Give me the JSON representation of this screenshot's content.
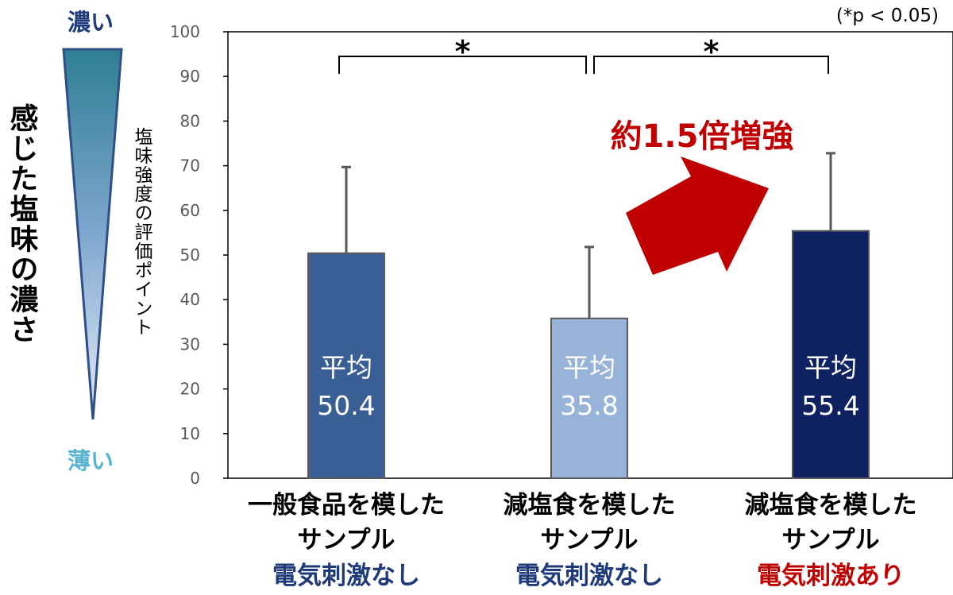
{
  "chart_data": {
    "type": "bar",
    "categories": [
      {
        "line1": "一般食品を模した",
        "line2": "サンプル",
        "line3": "電気刺激なし",
        "line3_color": "#1f3a7a"
      },
      {
        "line1": "減塩食を模した",
        "line2": "サンプル",
        "line3": "電気刺激なし",
        "line3_color": "#1f3a7a"
      },
      {
        "line1": "減塩食を模した",
        "line2": "サンプル",
        "line3": "電気刺激あり",
        "line3_color": "#c00000"
      }
    ],
    "values": [
      50.4,
      35.8,
      55.4
    ],
    "error_upper": [
      69.7,
      51.8,
      72.8
    ],
    "bar_colors": [
      "#3a5f94",
      "#97b3d7",
      "#0e2161"
    ],
    "bar_label_prefix": "平均",
    "bar_labels": [
      "50.4",
      "35.8",
      "55.4"
    ],
    "ylabel": "塩味強度の評価ポイント",
    "ylim": [
      0,
      100
    ],
    "yticks": [
      0,
      10,
      20,
      30,
      40,
      50,
      60,
      70,
      80,
      90,
      100
    ],
    "significance": [
      {
        "from": 0,
        "to": 1,
        "label": "*"
      },
      {
        "from": 1,
        "to": 2,
        "label": "*"
      }
    ],
    "significance_note": "(*p < 0.05)",
    "annotation": {
      "text": "約1.5倍増強",
      "color": "#c00000"
    },
    "side_scale": {
      "title": "感じた塩味の濃さ",
      "top_label": "濃い",
      "bottom_label": "薄い",
      "top_color": "#1f3a7a",
      "bottom_color": "#5ab4d2"
    }
  }
}
